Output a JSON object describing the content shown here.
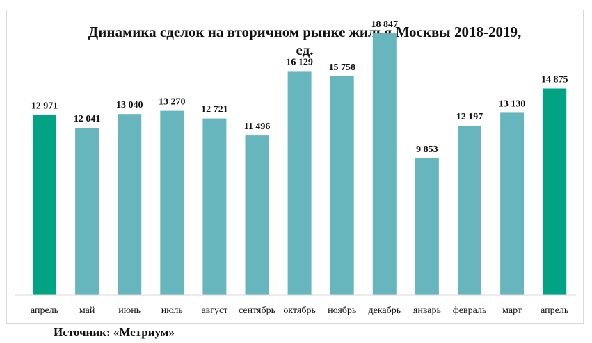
{
  "chart_data": {
    "type": "bar",
    "title": "Динамика сделок на вторичном рынке жилья Москвы 2018-2019,",
    "title_line2": "ед.",
    "categories": [
      "апрель",
      "май",
      "июнь",
      "июль",
      "август",
      "сентябрь",
      "октябрь",
      "ноябрь",
      "декабрь",
      "январь",
      "февраль",
      "март",
      "апрель"
    ],
    "values": [
      12971,
      12041,
      13040,
      13270,
      12721,
      11496,
      16129,
      15758,
      18847,
      9853,
      12197,
      13130,
      14875
    ],
    "value_labels": [
      "12 971",
      "12 041",
      "13 040",
      "13 270",
      "12 721",
      "11 496",
      "16 129",
      "15 758",
      "18 847",
      "9 853",
      "12 197",
      "13 130",
      "14 875"
    ],
    "highlight": [
      true,
      false,
      false,
      false,
      false,
      false,
      false,
      false,
      false,
      false,
      false,
      false,
      true
    ],
    "colors": {
      "default": "#67b6bd",
      "highlight": "#00a383",
      "axis": "#d9d9d9"
    },
    "ylim": [
      0,
      19500
    ],
    "grid": false,
    "legend": "none",
    "xlabel": "",
    "ylabel": ""
  },
  "source": "Источник: «Метриум»"
}
